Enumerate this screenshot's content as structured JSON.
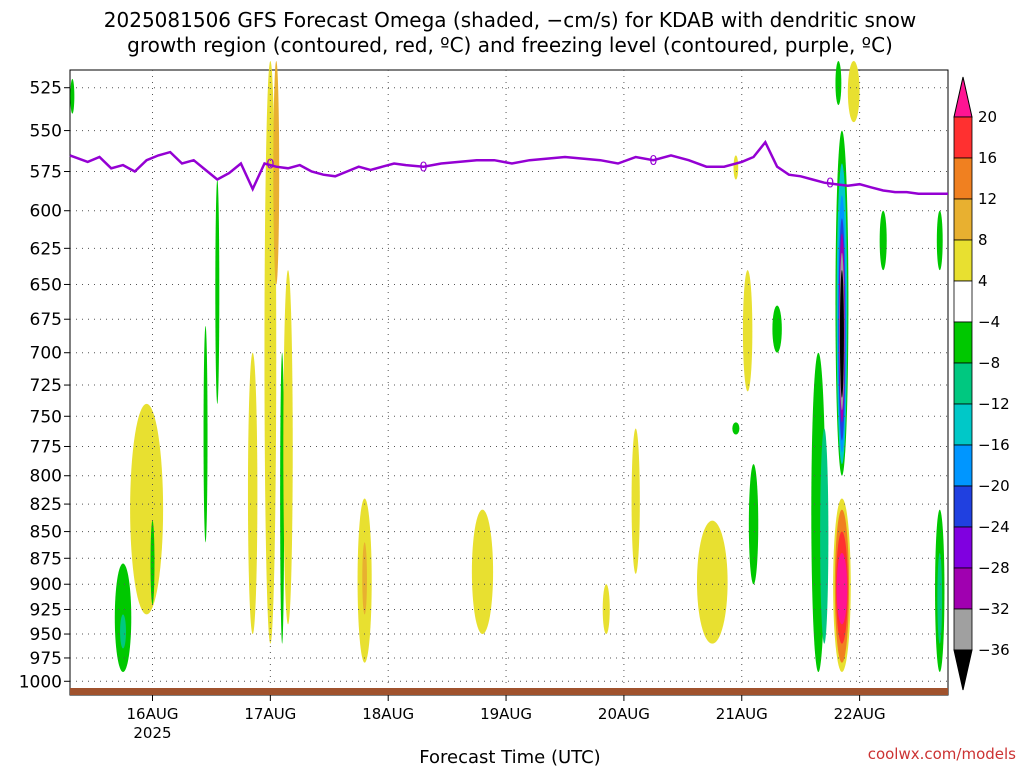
{
  "chart_data": {
    "type": "heatmap",
    "title_lines": [
      "2025081506 GFS Forecast Omega (shaded, −cm/s) for KDAB with dendritic snow",
      "growth region (contoured, red, ºC) and freezing level (contoured, purple, ºC)"
    ],
    "xlabel": "Forecast Time (UTC)",
    "credit": "coolwx.com/models",
    "y_axis": {
      "reversed": true,
      "ticks": [
        525,
        550,
        575,
        600,
        625,
        650,
        675,
        700,
        725,
        750,
        775,
        800,
        825,
        850,
        875,
        900,
        925,
        950,
        975,
        1000
      ],
      "tick_labels": [
        "525",
        "550",
        "575",
        "600",
        "625",
        "650",
        "675",
        "700",
        "725",
        "750",
        "775",
        "800",
        "825",
        "850",
        "875",
        "900",
        "925",
        "950",
        "975",
        "1000"
      ]
    },
    "x_axis": {
      "range_days": [
        15.3,
        22.75
      ],
      "ticks": [
        {
          "day": 16,
          "label": "16AUG",
          "sub": "2025"
        },
        {
          "day": 17,
          "label": "17AUG",
          "sub": ""
        },
        {
          "day": 18,
          "label": "18AUG",
          "sub": ""
        },
        {
          "day": 19,
          "label": "19AUG",
          "sub": ""
        },
        {
          "day": 20,
          "label": "20AUG",
          "sub": ""
        },
        {
          "day": 21,
          "label": "21AUG",
          "sub": ""
        },
        {
          "day": 22,
          "label": "22AUG",
          "sub": ""
        }
      ]
    },
    "grid": true,
    "colorbar": {
      "levels": [
        20,
        16,
        12,
        8,
        4,
        -4,
        -8,
        -12,
        -16,
        -20,
        -24,
        -28,
        -32,
        -36
      ],
      "labels": [
        "20",
        "16",
        "12",
        "8",
        "4",
        "−4",
        "−8",
        "−12",
        "−16",
        "−20",
        "−24",
        "−28",
        "−32",
        "−36"
      ],
      "colors": [
        "#ff1493",
        "#ff3030",
        "#f08020",
        "#e8b030",
        "#e8e030",
        "#ffffff",
        "#00c800",
        "#00c880",
        "#00c8c8",
        "#0096ff",
        "#2040e0",
        "#8000e0",
        "#a000b0",
        "#a0a0a0",
        "#000000"
      ]
    },
    "freezing_level_label": "0",
    "freezing_level": {
      "days": [
        15.3,
        15.45,
        15.55,
        15.65,
        15.75,
        15.85,
        15.95,
        16.05,
        16.15,
        16.25,
        16.35,
        16.45,
        16.55,
        16.65,
        16.75,
        16.85,
        16.95,
        17.05,
        17.15,
        17.25,
        17.35,
        17.45,
        17.55,
        17.65,
        17.75,
        17.85,
        17.95,
        18.05,
        18.15,
        18.3,
        18.45,
        18.6,
        18.75,
        18.9,
        19.05,
        19.2,
        19.35,
        19.5,
        19.65,
        19.8,
        19.95,
        20.1,
        20.25,
        20.4,
        20.55,
        20.7,
        20.85,
        21.0,
        21.1,
        21.2,
        21.3,
        21.4,
        21.5,
        21.6,
        21.7,
        21.8,
        21.9,
        22.0,
        22.1,
        22.2,
        22.3,
        22.4,
        22.5,
        22.6,
        22.75
      ],
      "pressure": [
        565,
        569,
        566,
        573,
        571,
        575,
        568,
        565,
        563,
        570,
        568,
        574,
        580,
        576,
        570,
        586,
        570,
        572,
        573,
        571,
        575,
        577,
        578,
        575,
        572,
        574,
        572,
        570,
        571,
        572,
        570,
        569,
        568,
        568,
        570,
        568,
        567,
        566,
        567,
        568,
        570,
        566,
        568,
        565,
        568,
        572,
        572,
        569,
        566,
        557,
        572,
        577,
        578,
        580,
        582,
        583,
        584,
        583,
        585,
        587,
        588,
        588,
        589,
        589,
        589
      ]
    },
    "omega_blobs": [
      {
        "day": 15.32,
        "p_top": 520,
        "p_bot": 540,
        "half_width": 0.01,
        "level": -4
      },
      {
        "day": 15.75,
        "p_top": 880,
        "p_bot": 990,
        "half_width": 0.07,
        "level": -4
      },
      {
        "day": 15.75,
        "p_top": 930,
        "p_bot": 965,
        "half_width": 0.025,
        "level": -8
      },
      {
        "day": 15.95,
        "p_top": 740,
        "p_bot": 930,
        "half_width": 0.14,
        "level": 4
      },
      {
        "day": 16.0,
        "p_top": 840,
        "p_bot": 920,
        "half_width": 0.01,
        "level": -4
      },
      {
        "day": 16.45,
        "p_top": 680,
        "p_bot": 860,
        "half_width": 0.015,
        "level": -4
      },
      {
        "day": 16.55,
        "p_top": 580,
        "p_bot": 740,
        "half_width": 0.01,
        "level": -4
      },
      {
        "day": 16.85,
        "p_top": 700,
        "p_bot": 950,
        "half_width": 0.04,
        "level": 4
      },
      {
        "day": 17.0,
        "p_top": 510,
        "p_bot": 960,
        "half_width": 0.05,
        "level": 4
      },
      {
        "day": 17.05,
        "p_top": 510,
        "p_bot": 650,
        "half_width": 0.025,
        "level": 8
      },
      {
        "day": 17.1,
        "p_top": 700,
        "p_bot": 960,
        "half_width": 0.015,
        "level": -4
      },
      {
        "day": 17.15,
        "p_top": 640,
        "p_bot": 940,
        "half_width": 0.04,
        "level": 4
      },
      {
        "day": 17.8,
        "p_top": 820,
        "p_bot": 980,
        "half_width": 0.06,
        "level": 4
      },
      {
        "day": 17.8,
        "p_top": 860,
        "p_bot": 930,
        "half_width": 0.02,
        "level": 8
      },
      {
        "day": 18.8,
        "p_top": 830,
        "p_bot": 950,
        "half_width": 0.09,
        "level": 4
      },
      {
        "day": 19.85,
        "p_top": 900,
        "p_bot": 950,
        "half_width": 0.03,
        "level": 4
      },
      {
        "day": 20.1,
        "p_top": 760,
        "p_bot": 890,
        "half_width": 0.035,
        "level": 4
      },
      {
        "day": 20.75,
        "p_top": 840,
        "p_bot": 960,
        "half_width": 0.13,
        "level": 4
      },
      {
        "day": 20.95,
        "p_top": 565,
        "p_bot": 580,
        "half_width": 0.02,
        "level": 4
      },
      {
        "day": 20.95,
        "p_top": 755,
        "p_bot": 765,
        "half_width": 0.03,
        "level": -4
      },
      {
        "day": 21.05,
        "p_top": 640,
        "p_bot": 730,
        "half_width": 0.04,
        "level": 4
      },
      {
        "day": 21.1,
        "p_top": 790,
        "p_bot": 900,
        "half_width": 0.04,
        "level": -4
      },
      {
        "day": 21.3,
        "p_top": 665,
        "p_bot": 700,
        "half_width": 0.04,
        "level": -4
      },
      {
        "day": 21.65,
        "p_top": 700,
        "p_bot": 990,
        "half_width": 0.06,
        "level": -4
      },
      {
        "day": 21.7,
        "p_top": 760,
        "p_bot": 960,
        "half_width": 0.035,
        "level": -8
      },
      {
        "day": 21.85,
        "p_top": 550,
        "p_bot": 800,
        "half_width": 0.055,
        "level": -4
      },
      {
        "day": 21.85,
        "p_top": 570,
        "p_bot": 790,
        "half_width": 0.045,
        "level": -12
      },
      {
        "day": 21.85,
        "p_top": 590,
        "p_bot": 780,
        "half_width": 0.035,
        "level": -16
      },
      {
        "day": 21.85,
        "p_top": 605,
        "p_bot": 770,
        "half_width": 0.03,
        "level": -20
      },
      {
        "day": 21.85,
        "p_top": 615,
        "p_bot": 755,
        "half_width": 0.025,
        "level": -28
      },
      {
        "day": 21.85,
        "p_top": 628,
        "p_bot": 745,
        "half_width": 0.02,
        "level": -32
      },
      {
        "day": 21.85,
        "p_top": 640,
        "p_bot": 735,
        "half_width": 0.017,
        "level": -36
      },
      {
        "day": 21.85,
        "p_top": 820,
        "p_bot": 990,
        "half_width": 0.075,
        "level": 4
      },
      {
        "day": 21.85,
        "p_top": 830,
        "p_bot": 980,
        "half_width": 0.06,
        "level": 12
      },
      {
        "day": 21.85,
        "p_top": 850,
        "p_bot": 960,
        "half_width": 0.05,
        "level": 16
      },
      {
        "day": 21.85,
        "p_top": 870,
        "p_bot": 940,
        "half_width": 0.045,
        "level": 20
      },
      {
        "day": 21.95,
        "p_top": 510,
        "p_bot": 545,
        "half_width": 0.05,
        "level": 4
      },
      {
        "day": 21.82,
        "p_top": 510,
        "p_bot": 535,
        "half_width": 0.025,
        "level": -4
      },
      {
        "day": 22.2,
        "p_top": 600,
        "p_bot": 640,
        "half_width": 0.03,
        "level": -4
      },
      {
        "day": 22.68,
        "p_top": 600,
        "p_bot": 640,
        "half_width": 0.025,
        "level": -4
      },
      {
        "day": 22.68,
        "p_top": 830,
        "p_bot": 990,
        "half_width": 0.04,
        "level": -4
      },
      {
        "day": 22.68,
        "p_top": 870,
        "p_bot": 960,
        "half_width": 0.02,
        "level": -8
      }
    ],
    "terrain_color": "#a0522d"
  }
}
